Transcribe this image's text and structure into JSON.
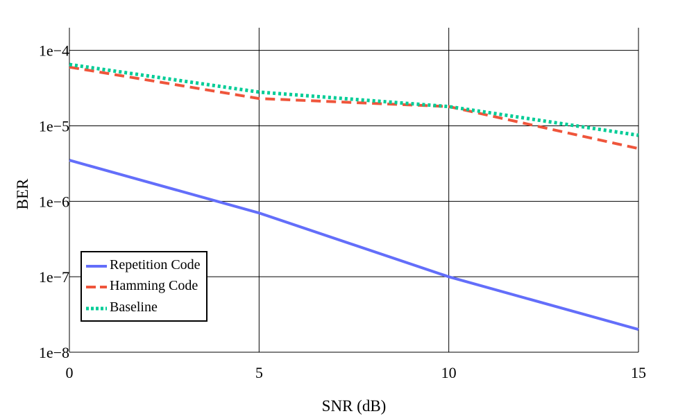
{
  "chart_data": {
    "type": "line",
    "title": "",
    "xlabel": "SNR (dB)",
    "ylabel": "BER",
    "x_ticks": [
      0,
      5,
      10,
      15
    ],
    "y_tick_labels": [
      "1e−4",
      "1e−5",
      "1e−6",
      "1e−7",
      "1e−8"
    ],
    "xlim": [
      0,
      15
    ],
    "ylim_log10": [
      -8,
      -3.7
    ],
    "y_scale": "log",
    "grid": true,
    "legend_position": "bottom-left",
    "series": [
      {
        "name": "Repetition Code",
        "color": "#636efa",
        "dash": "solid",
        "x": [
          0,
          5,
          10,
          15
        ],
        "y": [
          3.5e-06,
          7e-07,
          1e-07,
          2e-08
        ]
      },
      {
        "name": "Hamming Code",
        "color": "#ef553b",
        "dash": "dash",
        "x": [
          0,
          5,
          10,
          15
        ],
        "y": [
          6e-05,
          2.3e-05,
          1.8e-05,
          5e-06
        ]
      },
      {
        "name": "Baseline",
        "color": "#00cc96",
        "dash": "dot",
        "x": [
          0,
          5,
          10,
          15
        ],
        "y": [
          6.5e-05,
          2.8e-05,
          1.8e-05,
          7.5e-06
        ]
      }
    ]
  }
}
